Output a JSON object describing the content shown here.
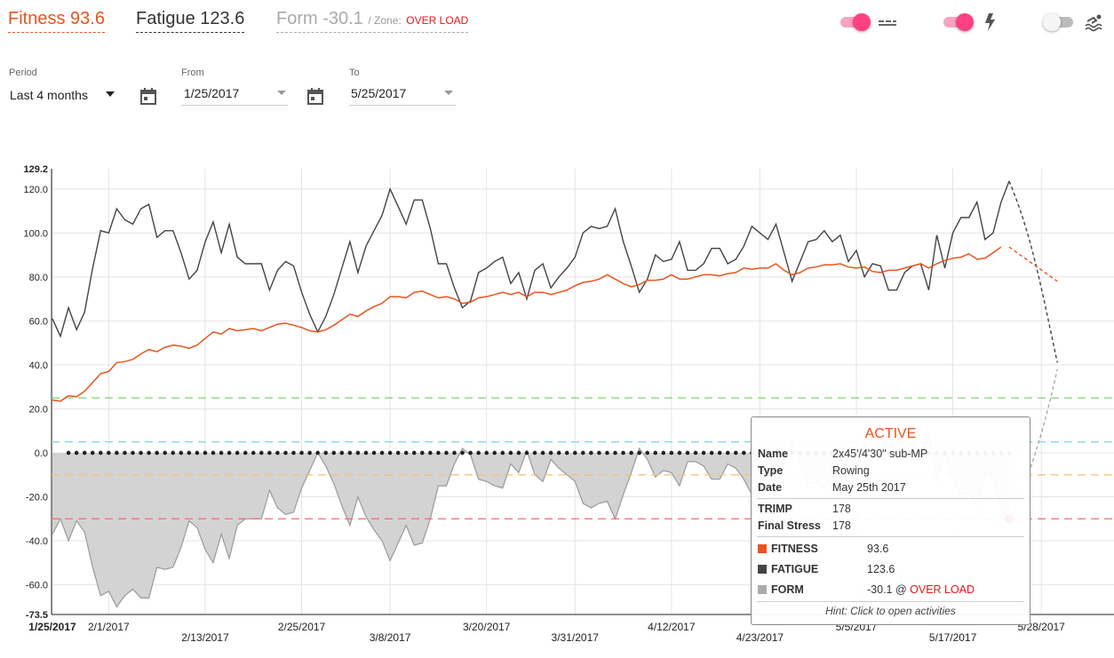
{
  "header": {
    "fitness": "Fitness 93.6",
    "fatigue": "Fatigue 123.6",
    "form": "Form -30.1",
    "zone_label": "/ Zone:",
    "zone_value": "OVER LOAD"
  },
  "toggles": [
    {
      "name": "heart-rate-toggle",
      "state": "on",
      "icon": "heart-rate-lines-icon"
    },
    {
      "name": "power-toggle",
      "state": "on",
      "icon": "lightning-icon"
    },
    {
      "name": "swim-toggle",
      "state": "off",
      "icon": "swim-icon"
    }
  ],
  "filters": {
    "period_label": "Period",
    "period_value": "Last 4 months",
    "from_label": "From",
    "from_value": "1/25/2017",
    "to_label": "To",
    "to_value": "5/25/2017"
  },
  "colors": {
    "fitness": "#e8541d",
    "fatigue": "#444444",
    "form_fill": "#d3d3d3",
    "form_line": "#9a9a9a",
    "zone_red": "#e8141d",
    "toggle_on": "#ff4081"
  },
  "chart_data": {
    "type": "line",
    "ylim": [
      -73.5,
      129.2
    ],
    "y_top_label": "129.2",
    "y_bottom_label": "-73.5",
    "y_ticks": [
      "120.0",
      "100.0",
      "80.0",
      "60.0",
      "40.0",
      "20.0",
      "0.0",
      "-20.0",
      "-40.0",
      "-60.0"
    ],
    "x_labels": [
      {
        "label": "1/25/2017",
        "day": 0,
        "row": 1,
        "bold": true
      },
      {
        "label": "2/1/2017",
        "day": 7,
        "row": 1
      },
      {
        "label": "2/13/2017",
        "day": 19,
        "row": 2
      },
      {
        "label": "2/25/2017",
        "day": 31,
        "row": 1
      },
      {
        "label": "3/8/2017",
        "day": 42,
        "row": 2
      },
      {
        "label": "3/20/2017",
        "day": 54,
        "row": 1
      },
      {
        "label": "3/31/2017",
        "day": 65,
        "row": 2
      },
      {
        "label": "4/12/2017",
        "day": 77,
        "row": 1
      },
      {
        "label": "4/23/2017",
        "day": 88,
        "row": 2
      },
      {
        "label": "5/5/2017",
        "day": 100,
        "row": 1
      },
      {
        "label": "5/17/2017",
        "day": 112,
        "row": 2
      },
      {
        "label": "5/28/2017",
        "day": 123,
        "row": 1
      }
    ],
    "zone_lines": [
      {
        "value": 25,
        "color": "#6ccf5a"
      },
      {
        "value": 5,
        "color": "#7fd3e8"
      },
      {
        "value": -10,
        "color": "#f2c46b"
      },
      {
        "value": -30,
        "color": "#f06b78"
      }
    ],
    "series": [
      {
        "name": "FITNESS",
        "color": "#e8541d",
        "values": [
          24,
          23.5,
          26,
          25.5,
          28,
          32,
          36,
          37,
          41,
          41.5,
          42.5,
          45,
          47,
          46,
          48,
          49,
          48.5,
          47.5,
          49,
          52,
          55,
          54,
          56.5,
          55.5,
          56,
          56.5,
          55.5,
          57,
          58.5,
          59,
          58,
          57,
          55.5,
          55,
          56,
          58,
          60.5,
          63,
          62,
          64.5,
          66.5,
          68,
          71,
          71,
          70.5,
          73,
          73.5,
          72,
          70.5,
          71,
          70,
          68,
          68.5,
          70.5,
          71,
          72,
          73,
          72,
          73,
          71,
          73,
          73,
          72,
          73,
          74,
          76,
          77.5,
          78,
          79,
          81,
          79,
          77,
          75.5,
          76.5,
          78.5,
          78.5,
          79,
          81,
          79,
          79,
          80,
          81,
          81,
          80.5,
          81.5,
          82,
          84,
          83.5,
          84,
          84,
          86,
          83,
          81,
          82,
          84,
          84.5,
          85.5,
          85.5,
          86,
          84.5,
          84,
          84.5,
          82.5,
          82,
          83,
          83,
          84,
          85,
          86,
          84,
          86,
          87.5,
          88.5,
          89,
          90.5,
          88,
          88.5,
          91,
          93.6
        ]
      },
      {
        "name": "FATIGUE",
        "color": "#444444",
        "values": [
          61,
          53,
          66,
          56,
          64,
          84,
          101,
          100,
          111,
          106,
          104,
          111,
          113,
          98,
          101,
          101,
          91,
          79,
          83,
          96,
          105,
          91,
          104,
          89,
          86,
          86,
          86,
          74,
          83,
          87,
          85,
          73,
          63,
          55,
          62,
          72,
          84,
          96,
          82,
          94,
          101,
          108,
          120,
          112,
          104,
          115,
          115,
          102,
          86,
          86,
          75,
          66,
          69,
          82,
          84,
          87,
          89,
          77,
          82,
          70,
          83,
          86,
          75,
          80,
          84,
          89,
          100,
          103,
          102,
          103,
          111,
          96,
          85,
          73,
          79,
          90,
          87,
          88,
          96,
          83,
          83,
          86,
          93,
          93,
          86,
          88,
          94,
          103,
          100,
          97,
          104,
          91,
          78,
          87,
          96,
          97,
          101,
          96,
          99,
          87,
          92,
          80,
          86,
          85,
          74,
          74,
          82,
          85,
          86,
          74,
          99,
          84,
          100,
          107,
          107,
          114,
          97,
          100,
          114,
          123.6
        ]
      },
      {
        "name": "FORM",
        "color": "#9a9a9a",
        "values": [
          -37,
          -30,
          -40,
          -31,
          -36,
          -52,
          -65,
          -63,
          -70,
          -65,
          -62,
          -66,
          -66,
          -52,
          -53,
          -52,
          -43,
          -31,
          -34,
          -44,
          -50,
          -37,
          -48,
          -33,
          -30,
          -30,
          -30,
          -17,
          -25,
          -28,
          -27,
          -16,
          -8,
          0,
          -6,
          -14,
          -24,
          -33,
          -20,
          -29,
          -35,
          -40,
          -49,
          -41,
          -33,
          -42,
          -41,
          -30,
          -15,
          -15,
          -5,
          2,
          -1,
          -12,
          -13,
          -15,
          -16,
          -5,
          -9,
          1,
          -10,
          -13,
          -3,
          -7,
          -10,
          -13,
          -23,
          -25,
          -23,
          -22,
          -30,
          -19,
          -9,
          2,
          -3,
          -11,
          -8,
          -9,
          -15,
          -4,
          -4,
          -6,
          -12,
          -12,
          -5,
          -7,
          -12,
          -19,
          -16,
          -14,
          -20,
          -5,
          5,
          -5,
          -14,
          -13,
          -16,
          -11,
          -13,
          -1,
          -7,
          4,
          -2,
          -2,
          10,
          10,
          1,
          -2,
          -2,
          10,
          -13,
          0,
          -12,
          -19,
          -18,
          -24,
          -9,
          -12,
          -25,
          -30.1
        ]
      }
    ],
    "projection": {
      "fitness": [
        93.6,
        78
      ],
      "fatigue": [
        123.6,
        41
      ],
      "form": [
        -30.1,
        38
      ],
      "end_day": 125
    },
    "activity_days": [
      0,
      1,
      2,
      3,
      4,
      5,
      6,
      7,
      8,
      9,
      10,
      11,
      12,
      13,
      14,
      15,
      16,
      17,
      18,
      19,
      20,
      21,
      22,
      23,
      24,
      25,
      26,
      27,
      28,
      29,
      30,
      31,
      32,
      33,
      34,
      35,
      36,
      37,
      38,
      39,
      40,
      41,
      42,
      43,
      44,
      45,
      46,
      47,
      48,
      49,
      50,
      51,
      52,
      53,
      54,
      55,
      56,
      57,
      58,
      59,
      60,
      61,
      62,
      63,
      64,
      65,
      66,
      67,
      68,
      69,
      70,
      71,
      72,
      73,
      74,
      75,
      76,
      77,
      78,
      79,
      80,
      81,
      82,
      83,
      84,
      85,
      86,
      87,
      88,
      89,
      90,
      91,
      92,
      93,
      94,
      95,
      96,
      97,
      98,
      99,
      100,
      101,
      102,
      103,
      104,
      105,
      106,
      107,
      108,
      109,
      110,
      111,
      112,
      113,
      114,
      115,
      116,
      117,
      118,
      119
    ],
    "selected_day": 119
  },
  "tooltip": {
    "title": "ACTIVE",
    "name_label": "Name",
    "name_value": "2x45'/4'30\" sub-MP",
    "type_label": "Type",
    "type_value": "Rowing",
    "date_label": "Date",
    "date_value": "May 25th 2017",
    "trimp_label": "TRIMP",
    "trimp_value": "178",
    "stress_label": "Final Stress",
    "stress_value": "178",
    "fitness_label": "FITNESS",
    "fitness_value": "93.6",
    "fatigue_label": "FATIGUE",
    "fatigue_value": "123.6",
    "form_label": "FORM",
    "form_value": "-30.1 @",
    "form_zone": "OVER LOAD",
    "hint": "Hint: Click to open activities"
  }
}
